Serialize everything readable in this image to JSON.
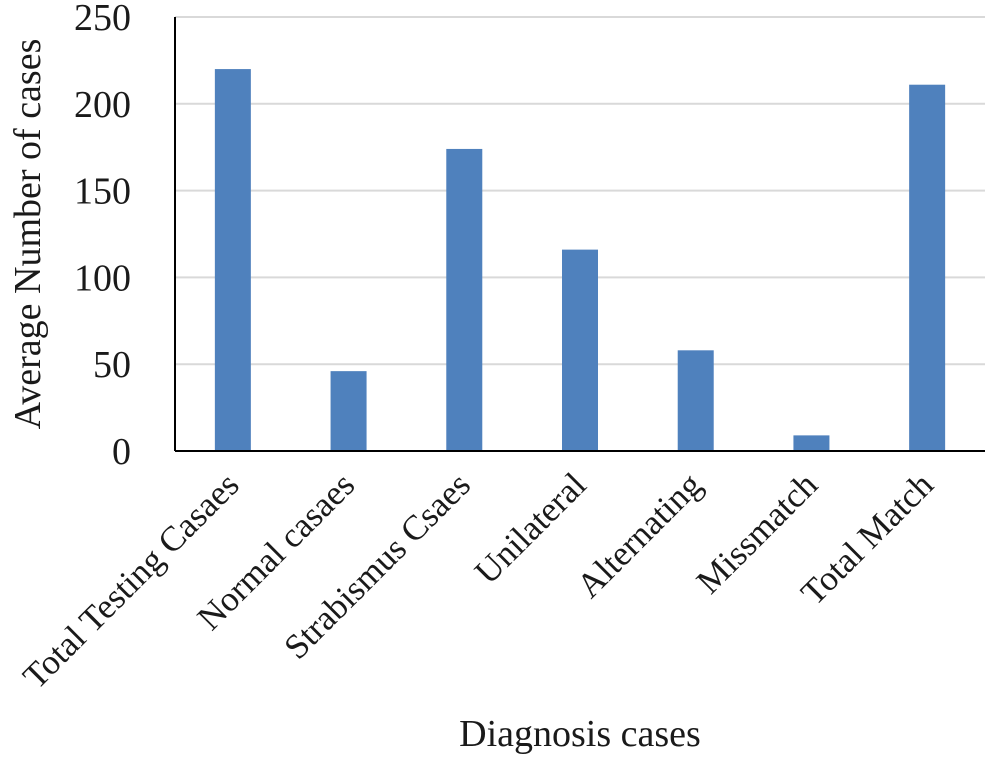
{
  "chart_data": {
    "type": "bar",
    "title": "",
    "xlabel": "Diagnosis cases",
    "ylabel": "Average Number of cases",
    "categories": [
      "Total Testing Casaes",
      "Normal casaes",
      "Strabismus Csaes",
      "Unilateral",
      "Alternating",
      "Missmatch",
      "Total Match"
    ],
    "values": [
      220,
      46,
      174,
      116,
      58,
      9,
      211
    ],
    "ylim": [
      0,
      250
    ],
    "yticks": [
      0,
      50,
      100,
      150,
      200,
      250
    ],
    "grid": true,
    "legend": "none",
    "bar_color": "#4f81bd",
    "grid_color": "#d9d9d9",
    "axis_color": "#000000"
  }
}
